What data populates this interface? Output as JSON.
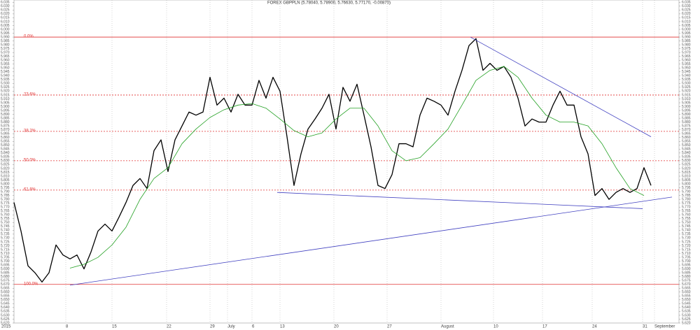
{
  "chart_data": {
    "type": "line",
    "title": "FOREX GBPPLN (5.78040, 5.78900, 5.76630, 5.77170, -0.00870)",
    "year_label": "2015",
    "xlim": [
      0,
      95
    ],
    "ylim": [
      5.62,
      6.038
    ],
    "grid": true,
    "xticks": [
      {
        "value": 7.4,
        "label": "8"
      },
      {
        "value": 14,
        "label": "15"
      },
      {
        "value": 21.8,
        "label": "22"
      },
      {
        "value": 28,
        "label": "29"
      },
      {
        "value": 30.5,
        "label": "July"
      },
      {
        "value": 34,
        "label": "6"
      },
      {
        "value": 38,
        "label": "13"
      },
      {
        "value": 45.7,
        "label": "20"
      },
      {
        "value": 53.3,
        "label": "27"
      },
      {
        "value": 61,
        "label": "August"
      },
      {
        "value": 68.5,
        "label": "10"
      },
      {
        "value": 75.5,
        "label": "17"
      },
      {
        "value": 82.6,
        "label": "24"
      },
      {
        "value": 89.8,
        "label": "31"
      },
      {
        "value": 91.5,
        "label": "September"
      }
    ],
    "yticks": [
      {
        "value": 5.62,
        "label": "5.620"
      },
      5.625,
      {
        "value": 5.63,
        "label": "5.630"
      },
      5.635,
      {
        "value": 5.64,
        "label": "5.640"
      },
      5.645,
      {
        "value": 5.65,
        "label": "5.650"
      },
      5.655,
      {
        "value": 5.66,
        "label": "5.660"
      },
      5.665,
      {
        "value": 5.67,
        "label": "5.670"
      },
      5.675,
      {
        "value": 5.68,
        "label": "5.680"
      },
      5.685,
      {
        "value": 5.69,
        "label": "5.690"
      },
      5.695,
      {
        "value": 5.7,
        "label": "5.700"
      },
      5.705,
      {
        "value": 5.71,
        "label": "5.710"
      },
      5.715,
      {
        "value": 5.72,
        "label": "5.720"
      },
      5.725,
      {
        "value": 5.73,
        "label": "5.730"
      },
      5.735,
      {
        "value": 5.74,
        "label": "5.740"
      },
      5.745,
      {
        "value": 5.75,
        "label": "5.750"
      },
      5.755,
      {
        "value": 5.76,
        "label": "5.760"
      },
      5.765,
      {
        "value": 5.77,
        "label": "5.770"
      },
      5.775,
      {
        "value": 5.78,
        "label": "5.780"
      },
      5.785,
      {
        "value": 5.79,
        "label": "5.790"
      },
      5.795,
      {
        "value": 5.8,
        "label": "5.800"
      },
      5.805,
      {
        "value": 5.81,
        "label": "5.810"
      },
      5.815,
      {
        "value": 5.82,
        "label": "5.820"
      },
      5.825,
      {
        "value": 5.83,
        "label": "5.830"
      },
      5.835,
      {
        "value": 5.84,
        "label": "5.840"
      },
      5.845,
      {
        "value": 5.85,
        "label": "5.850"
      },
      5.855,
      {
        "value": 5.86,
        "label": "5.860"
      },
      5.865,
      {
        "value": 5.87,
        "label": "5.870"
      },
      5.875,
      {
        "value": 5.88,
        "label": "5.880"
      },
      5.885,
      {
        "value": 5.89,
        "label": "5.890"
      },
      5.895,
      {
        "value": 5.9,
        "label": "5.900"
      },
      5.905,
      {
        "value": 5.91,
        "label": "5.910"
      },
      5.915,
      {
        "value": 5.92,
        "label": "5.920"
      },
      5.925,
      {
        "value": 5.93,
        "label": "5.930"
      },
      5.935,
      {
        "value": 5.94,
        "label": "5.940"
      },
      5.945,
      {
        "value": 5.95,
        "label": "5.950"
      },
      5.955,
      {
        "value": 5.96,
        "label": "5.960"
      },
      5.965,
      {
        "value": 5.97,
        "label": "5.970"
      },
      5.975,
      {
        "value": 5.98,
        "label": "5.980"
      },
      5.985,
      {
        "value": 5.99,
        "label": "5.990"
      },
      5.995,
      {
        "value": 6,
        "label": "6.000"
      },
      6.005,
      {
        "value": 6.01,
        "label": "6.010"
      },
      6.015,
      {
        "value": 6.02,
        "label": "6.020"
      },
      6.025,
      {
        "value": 6.03,
        "label": "6.030"
      },
      6.035
    ],
    "series": [
      {
        "color": "#000000",
        "values": [
          5.776,
          5.739,
          5.694,
          5.685,
          5.673,
          5.685,
          5.721,
          5.708,
          5.703,
          5.708,
          5.69,
          5.712,
          5.739,
          5.748,
          5.739,
          5.757,
          5.776,
          5.798,
          5.807,
          5.794,
          5.843,
          5.857,
          5.816,
          5.857,
          5.875,
          5.893,
          5.889,
          5.893,
          5.938,
          5.902,
          5.911,
          5.893,
          5.916,
          5.902,
          5.902,
          5.934,
          5.911,
          5.938,
          5.92,
          5.861,
          5.798,
          5.839,
          5.871,
          5.884,
          5.898,
          5.916,
          5.871,
          5.925,
          5.907,
          5.929,
          5.889,
          5.848,
          5.798,
          5.794,
          5.812,
          5.852,
          5.852,
          5.848,
          5.889,
          5.911,
          5.907,
          5.902,
          5.889,
          5.92,
          5.947,
          5.979,
          5.988,
          5.947,
          5.956,
          5.947,
          5.952,
          5.938,
          5.911,
          5.875,
          5.884,
          5.88,
          5.88,
          5.902,
          5.92,
          5.902,
          5.902,
          5.861,
          5.839,
          5.785,
          5.794,
          5.78,
          5.789,
          5.794,
          5.789,
          5.794,
          5.821,
          5.798
        ]
      },
      {
        "color": "#22a022",
        "x": [
          8,
          10,
          12,
          14,
          16,
          18,
          20,
          22,
          24,
          26,
          28,
          30,
          32,
          34,
          36,
          38,
          40,
          42,
          44,
          46,
          48,
          50,
          52,
          54,
          56,
          58,
          60,
          62,
          64,
          66,
          68,
          70,
          72,
          74,
          76,
          78,
          80,
          82,
          84,
          86,
          88,
          90
        ],
        "values": [
          5.691,
          5.696,
          5.705,
          5.721,
          5.744,
          5.78,
          5.807,
          5.821,
          5.852,
          5.871,
          5.886,
          5.896,
          5.902,
          5.904,
          5.898,
          5.884,
          5.869,
          5.861,
          5.866,
          5.884,
          5.898,
          5.898,
          5.875,
          5.843,
          5.83,
          5.834,
          5.852,
          5.871,
          5.902,
          5.934,
          5.947,
          5.952,
          5.938,
          5.911,
          5.889,
          5.88,
          5.88,
          5.875,
          5.852,
          5.821,
          5.794,
          5.785
        ]
      }
    ],
    "fib_color": "#e03030",
    "fib_levels": [
      {
        "label": "0.0%",
        "price": 5.99
      },
      {
        "label": "23.6%",
        "price": 5.915
      },
      {
        "label": "38.2%",
        "price": 5.868
      },
      {
        "label": "50.0%",
        "price": 5.83
      },
      {
        "label": "61.8%",
        "price": 5.792
      },
      {
        "label": "100.0%",
        "price": 5.67
      }
    ],
    "trend_color": "#4040c0",
    "trendlines": [
      {
        "x": [
          37.6,
          89.8
        ],
        "y": [
          5.789,
          5.768
        ]
      },
      {
        "x": [
          8,
          94
        ],
        "y": [
          5.669,
          5.783
        ]
      },
      {
        "x": [
          65.2,
          91
        ],
        "y": [
          5.99,
          5.861
        ]
      }
    ]
  }
}
